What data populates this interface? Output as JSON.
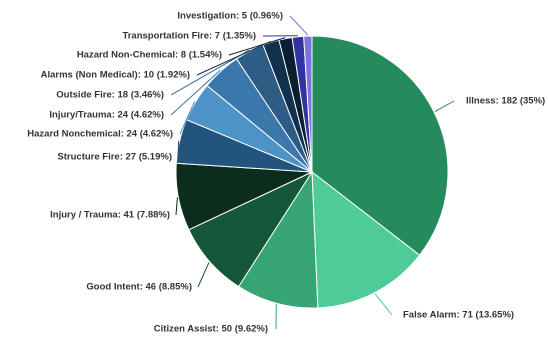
{
  "chart_data": {
    "type": "pie",
    "title": "",
    "slices": [
      {
        "label": "Illness: 182 (35%)",
        "name": "Illness",
        "value": 182,
        "percent": 35,
        "color": "#258b5c"
      },
      {
        "label": "False Alarm: 71 (13.65%)",
        "name": "False Alarm",
        "value": 71,
        "percent": 13.65,
        "color": "#4ecb96"
      },
      {
        "label": "Citizen Assist: 50 (9.62%)",
        "name": "Citizen Assist",
        "value": 50,
        "percent": 9.62,
        "color": "#37a573"
      },
      {
        "label": "Good Intent: 46 (8.85%)",
        "name": "Good Intent",
        "value": 46,
        "percent": 8.85,
        "color": "#14573a"
      },
      {
        "label": "Injury / Trauma: 41 (7.88%)",
        "name": "Injury / Trauma",
        "value": 41,
        "percent": 7.88,
        "color": "#0c2c1d"
      },
      {
        "label": "Structure Fire: 27 (5.19%)",
        "name": "Structure Fire",
        "value": 27,
        "percent": 5.19,
        "color": "#22547e"
      },
      {
        "label": "Hazard Nonchemical: 24 (4.62%)",
        "name": "Hazard Nonchemical",
        "value": 24,
        "percent": 4.62,
        "color": "#4d93c8"
      },
      {
        "label": "Injury/Trauma: 24 (4.62%)",
        "name": "Injury/Trauma",
        "value": 24,
        "percent": 4.62,
        "color": "#3a77ab"
      },
      {
        "label": "Outside Fire: 18 (3.46%)",
        "name": "Outside Fire",
        "value": 18,
        "percent": 3.46,
        "color": "#2d5c85"
      },
      {
        "label": "Alarms (Non Medical): 10 (1.92%)",
        "name": "Alarms (Non Medical)",
        "value": 10,
        "percent": 1.92,
        "color": "#12314e"
      },
      {
        "label": "Hazard Non-Chemical: 8 (1.54%)",
        "name": "Hazard Non-Chemical",
        "value": 8,
        "percent": 1.54,
        "color": "#0b1f33"
      },
      {
        "label": "Transportation Fire: 7 (1.35%)",
        "name": "Transportation Fire",
        "value": 7,
        "percent": 1.35,
        "color": "#3232a3"
      },
      {
        "label": "Investigation: 5 (0.96%)",
        "name": "Investigation",
        "value": 5,
        "percent": 0.96,
        "color": "#7b73e0"
      }
    ],
    "legend": "none",
    "data_labels": "outside with leader lines"
  }
}
